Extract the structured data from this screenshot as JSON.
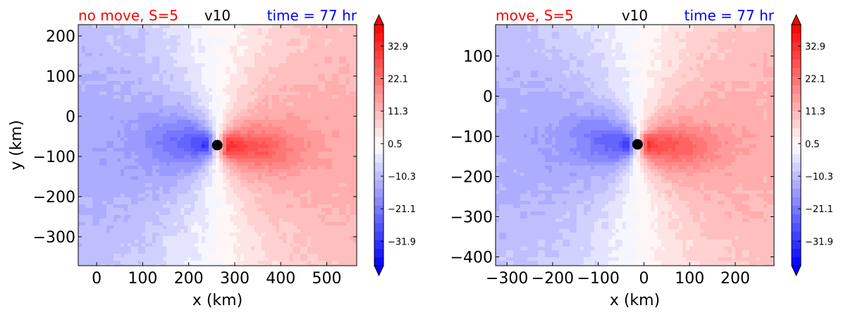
{
  "chart_data": [
    {
      "type": "heatmap",
      "title_left": "no move, S=5",
      "title_center": "v10",
      "title_right": "time = 77 hr",
      "title_left_color": "#ff0000",
      "title_right_color": "#0000ff",
      "xlabel": "x (km)",
      "ylabel": "y (km)",
      "xlim": [
        -40,
        565
      ],
      "ylim": [
        -372,
        228
      ],
      "x_ticks": [
        0,
        100,
        200,
        300,
        400,
        500
      ],
      "y_ticks": [
        200,
        100,
        0,
        -100,
        -200,
        -300
      ],
      "x_tick_labels": [
        "0",
        "100",
        "200",
        "300",
        "400",
        "500"
      ],
      "y_tick_labels": [
        "200",
        "100",
        "0",
        "−100",
        "−200",
        "−300"
      ],
      "center": [
        262,
        -72
      ],
      "colorbar": {
        "range": [
          -40,
          40
        ],
        "ticks": [
          32.9,
          22.1,
          11.3,
          0.5,
          -10.3,
          -21.1,
          -31.9
        ],
        "tick_labels": [
          "32.9",
          "22.1",
          "11.3",
          "0.5",
          "−10.3",
          "−21.1",
          "−31.9"
        ],
        "extend": "both",
        "colormap": "bwr"
      }
    },
    {
      "type": "heatmap",
      "title_left": "move, S=5",
      "title_center": "v10",
      "title_right": "time = 77 hr",
      "title_left_color": "#ff0000",
      "title_right_color": "#0000ff",
      "xlabel": "x (km)",
      "ylabel": "",
      "xlim": [
        -325,
        285
      ],
      "ylim": [
        -422,
        178
      ],
      "x_ticks": [
        -300,
        -200,
        -100,
        0,
        100,
        200
      ],
      "y_ticks": [
        100,
        0,
        -100,
        -200,
        -300,
        -400
      ],
      "x_tick_labels": [
        "−300",
        "−200",
        "−100",
        "0",
        "100",
        "200"
      ],
      "y_tick_labels": [
        "100",
        "0",
        "−100",
        "−200",
        "−300",
        "−400"
      ],
      "center": [
        -14,
        -120
      ],
      "colorbar": {
        "range": [
          -40,
          40
        ],
        "ticks": [
          32.9,
          22.1,
          11.3,
          0.5,
          -10.3,
          -21.1,
          -31.9
        ],
        "tick_labels": [
          "32.9",
          "22.1",
          "11.3",
          "0.5",
          "−10.3",
          "−21.1",
          "−31.9"
        ],
        "extend": "both",
        "colormap": "bwr"
      }
    }
  ]
}
